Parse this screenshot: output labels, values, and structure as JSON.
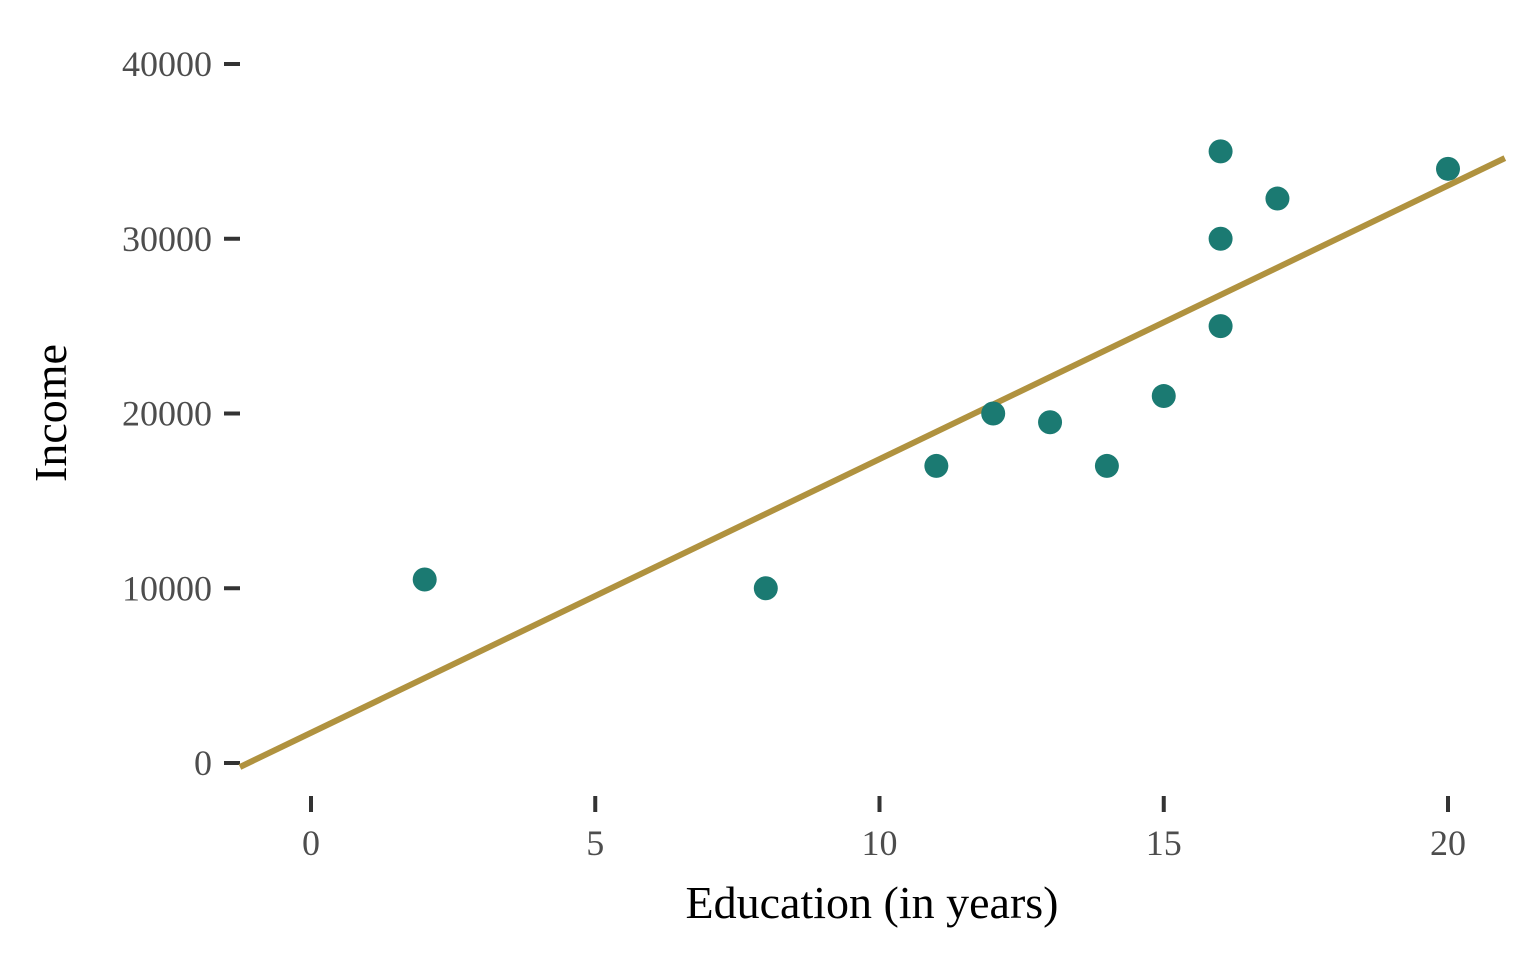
{
  "chart_data": {
    "type": "scatter",
    "title": "",
    "xlabel": "Education (in years)",
    "ylabel": "Income",
    "xlim": [
      -1.25,
      21
    ],
    "ylim": [
      -300,
      40000
    ],
    "xticks": [
      0,
      5,
      10,
      15,
      20
    ],
    "yticks": [
      0,
      10000,
      20000,
      30000,
      40000
    ],
    "xtick_labels": [
      "0",
      "5",
      "10",
      "15",
      "20"
    ],
    "ytick_labels": [
      "0",
      "10000",
      "20000",
      "30000",
      "40000"
    ],
    "grid": false,
    "points": [
      {
        "x": 2,
        "y": 10500
      },
      {
        "x": 8,
        "y": 10000
      },
      {
        "x": 11,
        "y": 17000
      },
      {
        "x": 12,
        "y": 20000
      },
      {
        "x": 13,
        "y": 19500
      },
      {
        "x": 14,
        "y": 17000
      },
      {
        "x": 15,
        "y": 21000
      },
      {
        "x": 16,
        "y": 35000
      },
      {
        "x": 16,
        "y": 30000
      },
      {
        "x": 16,
        "y": 25000
      },
      {
        "x": 17,
        "y": 32300
      },
      {
        "x": 20,
        "y": 34000
      }
    ],
    "trend_line": "linear regression fit",
    "colors": {
      "points": "#1b7a72",
      "line": "#b0923f",
      "ticks": "#333333"
    }
  }
}
